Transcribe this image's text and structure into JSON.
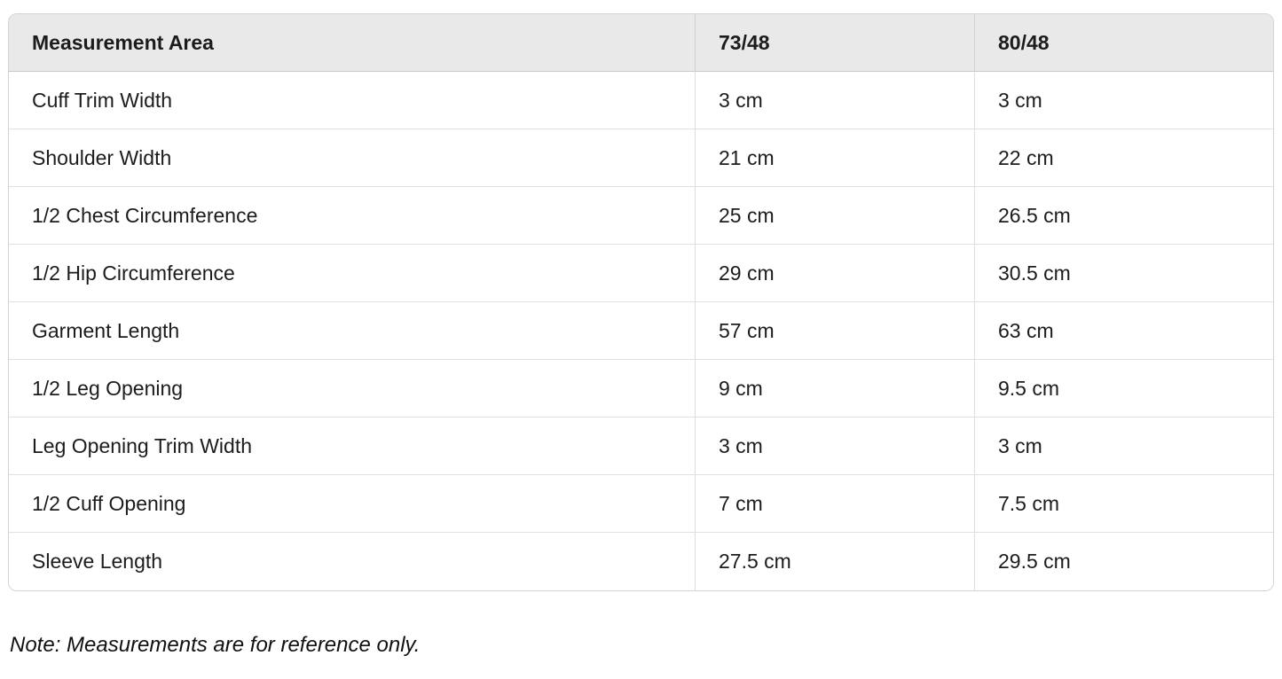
{
  "table": {
    "columns": [
      "Measurement Area",
      "73/48",
      "80/48"
    ],
    "rows": [
      [
        "Cuff Trim Width",
        "3 cm",
        "3 cm"
      ],
      [
        "Shoulder Width",
        "21 cm",
        "22 cm"
      ],
      [
        "1/2 Chest Circumference",
        "25 cm",
        "26.5 cm"
      ],
      [
        "1/2 Hip Circumference",
        "29 cm",
        "30.5 cm"
      ],
      [
        "Garment Length",
        "57 cm",
        "63 cm"
      ],
      [
        "1/2 Leg Opening",
        "9 cm",
        "9.5 cm"
      ],
      [
        "Leg Opening Trim Width",
        "3 cm",
        "3 cm"
      ],
      [
        "1/2 Cuff Opening",
        "7 cm",
        "7.5 cm"
      ],
      [
        "Sleeve Length",
        "27.5 cm",
        "29.5 cm"
      ]
    ],
    "cell_names": [
      "measurement-area-cell",
      "size-73-48-cell",
      "size-80-48-cell"
    ]
  },
  "note": "Note: Measurements are for reference only.",
  "colors": {
    "header_bg": "#e9e9ea",
    "outer_border": "#d3d3d6",
    "row_divider": "#e1e1e3",
    "text": "#1c1c1e"
  }
}
